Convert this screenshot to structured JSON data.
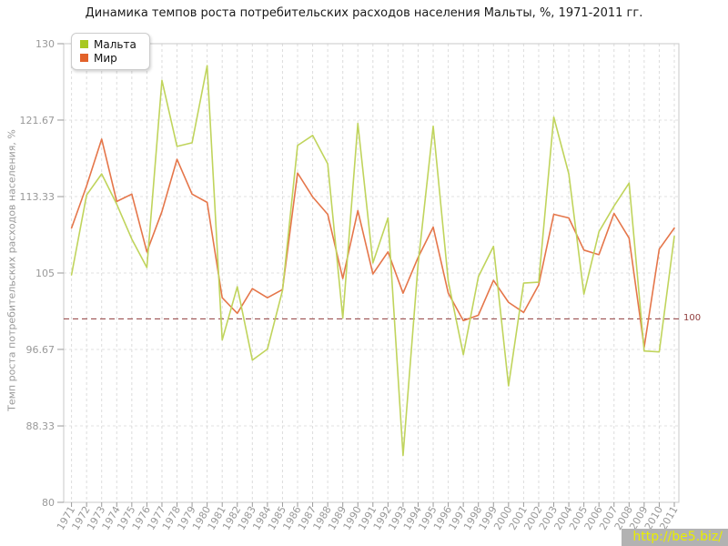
{
  "chart_data": {
    "type": "line",
    "title": "Динамика темпов роста потребительских расходов населения Мальты, %, 1971-2011 гг.",
    "xlabel": "",
    "ylabel": "Темп роста потребительских расходов населения, %",
    "ylim": [
      80,
      130
    ],
    "yticks": [
      130,
      121.67,
      113.33,
      105,
      96.67,
      88.33,
      80
    ],
    "ytick_labels": [
      "130",
      "121.67",
      "113.33",
      "105",
      "96.67",
      "88.33",
      "80"
    ],
    "grid": true,
    "legend_position": "top-left",
    "categories": [
      1971,
      1972,
      1973,
      1974,
      1975,
      1976,
      1977,
      1978,
      1979,
      1980,
      1981,
      1982,
      1983,
      1984,
      1985,
      1986,
      1987,
      1988,
      1989,
      1990,
      1991,
      1992,
      1993,
      1994,
      1995,
      1996,
      1997,
      1998,
      1999,
      2000,
      2001,
      2002,
      2003,
      2004,
      2005,
      2006,
      2007,
      2008,
      2009,
      2010,
      2011
    ],
    "series": [
      {
        "name": "Мальта",
        "color": "#c0d45c",
        "swatch": "#a8c822",
        "values": [
          104.8,
          113.5,
          115.8,
          112.5,
          108.7,
          105.6,
          126,
          118.8,
          119.2,
          127.6,
          97.7,
          103.5,
          95.5,
          96.7,
          103.1,
          118.9,
          120,
          116.9,
          100.1,
          121.3,
          106.1,
          111,
          85.1,
          106,
          121,
          104.1,
          96.1,
          104.6,
          107.9,
          92.7,
          103.9,
          104,
          122,
          115.8,
          102.7,
          109.5,
          112.3,
          114.8,
          96.5,
          96.4,
          109
        ]
      },
      {
        "name": "Мир",
        "color": "#e5764a",
        "swatch": "#e2622a",
        "values": [
          109.9,
          114.5,
          119.6,
          112.8,
          113.6,
          107.3,
          111.7,
          117.4,
          113.6,
          112.7,
          102.3,
          100.6,
          103.3,
          102.3,
          103.2,
          115.9,
          113.3,
          111.4,
          104.4,
          111.8,
          104.9,
          107.3,
          102.8,
          106.7,
          110,
          102.8,
          99.8,
          100.4,
          104.2,
          101.8,
          100.7,
          103.7,
          111.4,
          111,
          107.5,
          107,
          111.5,
          108.8,
          96.9,
          107.6,
          109.9
        ]
      }
    ],
    "reference_line": {
      "value": 100,
      "label": "100",
      "color": "#8e3b3b",
      "style": "dashed"
    }
  },
  "watermark": {
    "text": "http://be5.biz/",
    "color": "#e9ee00",
    "bg": "#b2b2b2"
  }
}
